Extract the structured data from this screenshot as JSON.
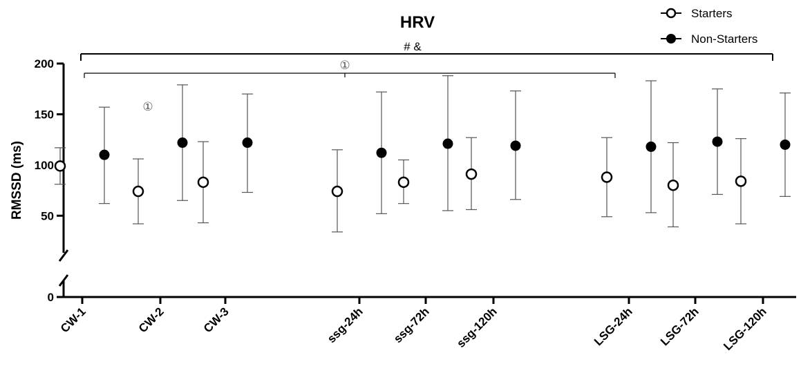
{
  "chart_data": {
    "type": "scatter",
    "title": "HRV",
    "xlabel": "",
    "ylabel": "RMSSD (ms)",
    "ylim": [
      0,
      200
    ],
    "yticks": [
      0,
      50,
      100,
      150,
      200
    ],
    "y_axis_break": [
      0,
      25
    ],
    "categories": [
      "CW-1",
      "CW-2",
      "CW-3",
      "ssg-24h",
      "ssg-72h",
      "ssg-120h",
      "LSG-24h",
      "LSG-72h",
      "LSG-120h"
    ],
    "legend_position": "top-right",
    "grid": false,
    "series": [
      {
        "name": "Starters",
        "marker": "open-circle",
        "values": [
          99,
          74,
          83,
          74,
          83,
          91,
          88,
          80,
          84
        ],
        "lower": [
          81,
          42,
          43,
          34,
          62,
          56,
          49,
          39,
          42
        ],
        "upper": [
          117,
          106,
          123,
          115,
          105,
          127,
          127,
          122,
          126
        ]
      },
      {
        "name": "Non-Starters",
        "marker": "filled-circle",
        "values": [
          110,
          122,
          122,
          112,
          121,
          119,
          118,
          123,
          120
        ],
        "lower": [
          62,
          65,
          73,
          52,
          55,
          66,
          53,
          71,
          69
        ],
        "upper": [
          157,
          179,
          170,
          172,
          188,
          173,
          183,
          175,
          171
        ]
      }
    ],
    "annotations": [
      {
        "text": "# &",
        "type": "bracket",
        "from": "CW-1",
        "to": "LSG-120h"
      },
      {
        "text": "①",
        "type": "bracket",
        "from": "CW-1",
        "to": "LSG-24h"
      },
      {
        "text": "①",
        "type": "label",
        "near": "CW-2"
      }
    ]
  }
}
